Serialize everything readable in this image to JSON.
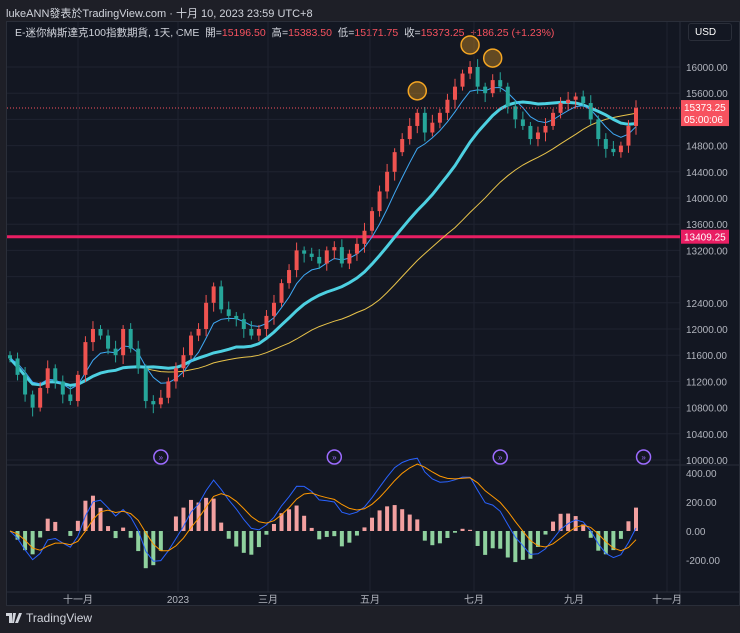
{
  "credit": "lukeANN發表於TradingView.com · 十月 10, 2023 23:59 UTC+8",
  "legend": {
    "symbol": "E-迷你納斯達克100指數期貨, 1天, CME",
    "open_label": "開=",
    "open": "15196.50",
    "high_label": "高=",
    "high": "15383.50",
    "low_label": "低=",
    "low": "15171.75",
    "close_label": "收=",
    "close": "15373.25",
    "change": "+186.25 (+1.23%)"
  },
  "currency_button": "USD",
  "price_axis": [
    "16000.00",
    "15600.00",
    "14800.00",
    "14400.00",
    "14000.00",
    "13600.00",
    "13200.00",
    "12400.00",
    "12000.00",
    "11600.00",
    "11200.00",
    "10800.00",
    "10400.00",
    "10000.00"
  ],
  "current_price": {
    "value": "15373.25",
    "countdown": "05:00:06",
    "color": "#f7525f"
  },
  "horizontal_line": {
    "value": "13409.25",
    "color": "#e91e63"
  },
  "macd_axis": [
    "400.00",
    "200.00",
    "0.00",
    "-200.00"
  ],
  "time_axis": [
    "十一月",
    "2023",
    "三月",
    "五月",
    "七月",
    "九月",
    "十一月"
  ],
  "footer": "TradingView",
  "colors": {
    "up": "#ef5350",
    "down": "#26a69a",
    "ma_fast": "#3fa9f5",
    "ma_mid": "#4dd0e1",
    "ma_slow": "#e8c34a",
    "marker": "#f5a623",
    "event": "#9c6bff"
  },
  "chart_data": {
    "type": "candlestick",
    "ylim": [
      10000,
      16200
    ],
    "closes": [
      11550,
      11300,
      11000,
      10800,
      11100,
      11400,
      11200,
      11000,
      10900,
      11300,
      11800,
      12000,
      11900,
      11700,
      11600,
      12000,
      11700,
      11400,
      10900,
      10850,
      10950,
      11200,
      11400,
      11600,
      11900,
      12000,
      12400,
      12650,
      12300,
      12200,
      12150,
      12000,
      11900,
      12000,
      12200,
      12400,
      12700,
      12900,
      13200,
      13150,
      13100,
      13000,
      13200,
      13250,
      13000,
      13150,
      13300,
      13500,
      13800,
      14100,
      14400,
      14700,
      14900,
      15100,
      15300,
      15000,
      15150,
      15300,
      15500,
      15700,
      15900,
      16000,
      15700,
      15600,
      15800,
      15700,
      15400,
      15200,
      15100,
      14900,
      15000,
      15100,
      15300,
      15450,
      15500,
      15550,
      15450,
      15200,
      14900,
      14750,
      14700,
      14800,
      15100,
      15373.25
    ],
    "markers_at_high": [
      54,
      61,
      64
    ],
    "events_at": [
      20,
      43,
      65,
      84
    ]
  }
}
